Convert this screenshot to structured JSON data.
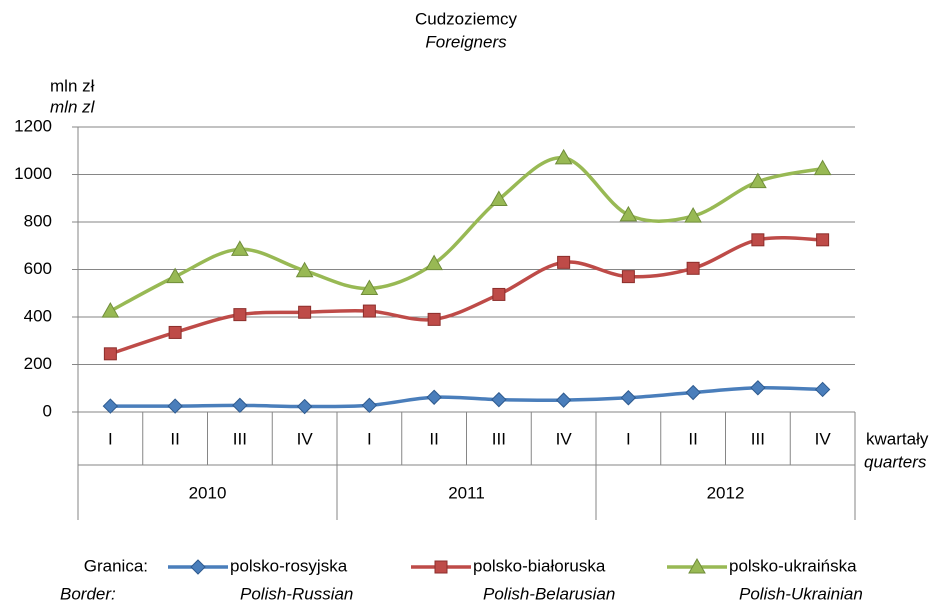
{
  "chart_data": {
    "type": "line",
    "title": "Cudzoziemcy",
    "subtitle": "Foreigners",
    "y_label": "mln zł",
    "y_label_en": "mln zl",
    "x_label": "kwartały",
    "x_label_en": "quarters",
    "legend_title": "Granica:",
    "legend_title_en": "Border:",
    "categories": [
      "I",
      "II",
      "III",
      "IV",
      "I",
      "II",
      "III",
      "IV",
      "I",
      "II",
      "III",
      "IV"
    ],
    "groups": [
      "2010",
      "2011",
      "2012"
    ],
    "ylim": [
      0,
      1200
    ],
    "yticks": [
      0,
      200,
      400,
      600,
      800,
      1000,
      1200
    ],
    "grid": true,
    "smooth": true,
    "series": [
      {
        "name": "polsko-rosyjska",
        "name_en": "Polish-Russian",
        "color": "#4a7ebb",
        "marker": "diamond",
        "values": [
          25,
          25,
          28,
          23,
          28,
          62,
          52,
          50,
          60,
          82,
          102,
          95
        ]
      },
      {
        "name": "polsko-białoruska",
        "name_en": "Polish-Belarusian",
        "color": "#be4b48",
        "marker": "square",
        "values": [
          245,
          335,
          410,
          420,
          425,
          390,
          495,
          630,
          570,
          605,
          725,
          725
        ]
      },
      {
        "name": "polsko-ukraińska",
        "name_en": "Polish-Ukrainian",
        "color": "#98b954",
        "marker": "triangle",
        "values": [
          425,
          570,
          685,
          595,
          520,
          625,
          895,
          1070,
          830,
          825,
          970,
          1025
        ]
      }
    ]
  }
}
